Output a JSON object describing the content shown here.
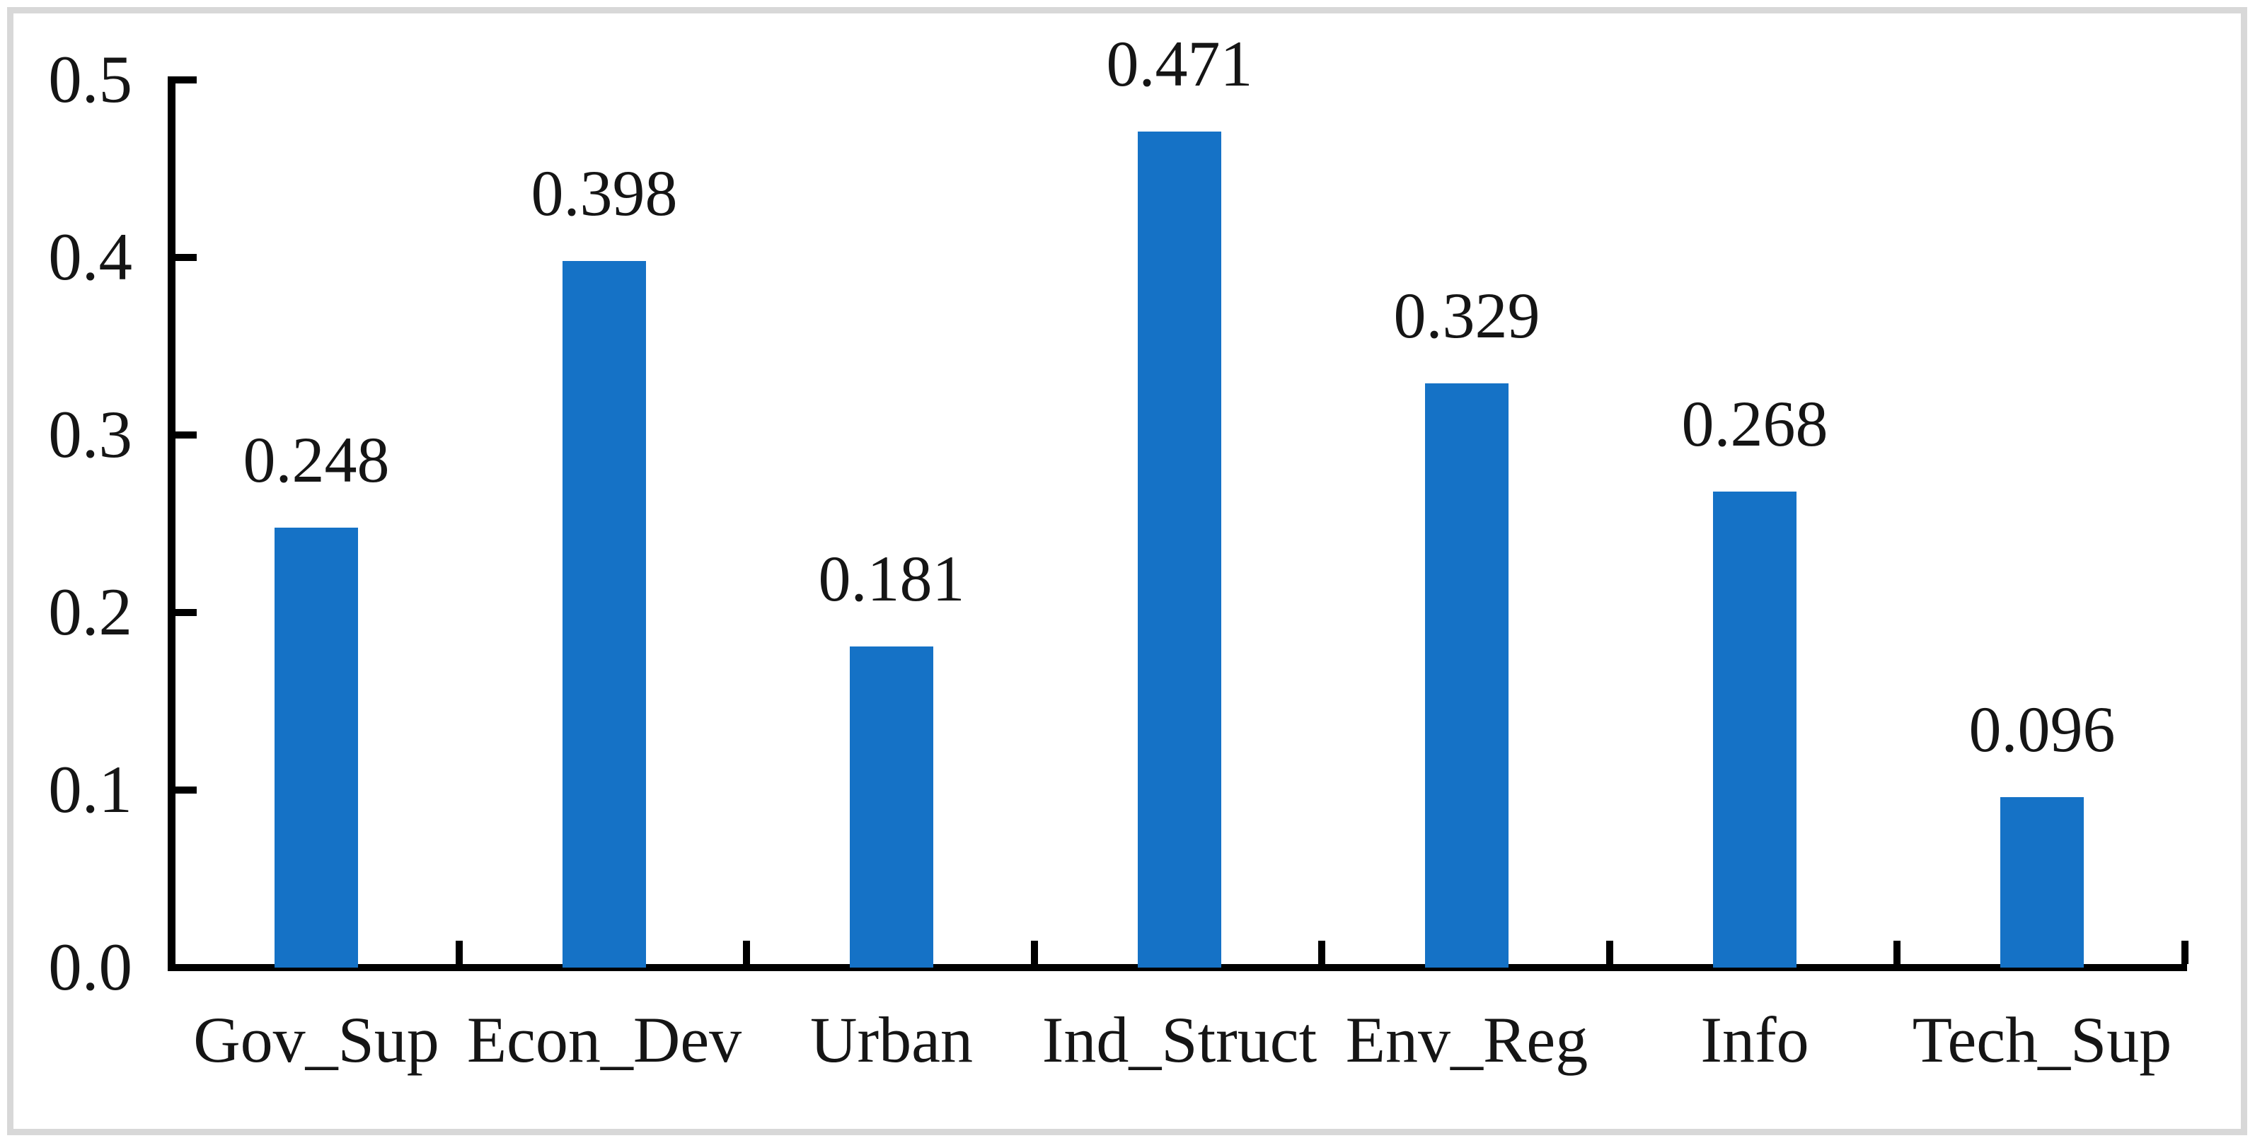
{
  "figure": {
    "background_color": "#ffffff",
    "frame_color": "#d8d8d8",
    "axis_color": "#000000",
    "text_color": "#151515",
    "bar_color": "#1572c6"
  },
  "chart_data": {
    "type": "bar",
    "title": "",
    "xlabel": "",
    "ylabel": "",
    "categories": [
      "Gov_Sup",
      "Econ_Dev",
      "Urban",
      "Ind_Struct",
      "Env_Reg",
      "Info",
      "Tech_Sup"
    ],
    "values": [
      0.248,
      0.398,
      0.181,
      0.471,
      0.329,
      0.268,
      0.096
    ],
    "data_labels": [
      "0.248",
      "0.398",
      "0.181",
      "0.471",
      "0.329",
      "0.268",
      "0.096"
    ],
    "y_tick_labels": [
      "0.0",
      "0.1",
      "0.2",
      "0.3",
      "0.4",
      "0.5"
    ],
    "ylim": [
      0.0,
      0.5
    ],
    "y_tick_step": 0.1,
    "grid": false,
    "legend": "none",
    "bar_labels_position": "above-bars",
    "tick_style": "inside"
  }
}
